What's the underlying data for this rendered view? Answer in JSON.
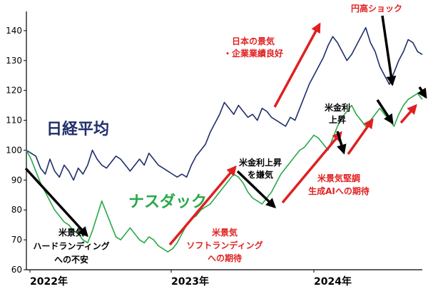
{
  "chart_data": {
    "type": "line",
    "title": "",
    "xlabel": "",
    "ylabel": "",
    "ylim": [
      60,
      145
    ],
    "yticks": [
      60,
      70,
      80,
      90,
      100,
      110,
      120,
      130,
      140
    ],
    "xtick_labels": [
      "2022年",
      "2023年",
      "2024年"
    ],
    "grid": false,
    "colors": {
      "nikkei": "#1f2f6b",
      "nasdaq": "#2aa84a",
      "up_arrow": "#e02020",
      "down_arrow": "#000000",
      "red_text": "#e02020",
      "black_text": "#000000"
    },
    "series": [
      {
        "name": "日経平均",
        "values": [
          100,
          99,
          98,
          94,
          92,
          97,
          93,
          91,
          95,
          93,
          90,
          94,
          92,
          95,
          100,
          97,
          95,
          94,
          96,
          98,
          97,
          95,
          93,
          95,
          97,
          95,
          99,
          97,
          95,
          94,
          93,
          92,
          91,
          92,
          91,
          95,
          98,
          100,
          102,
          106,
          109,
          112,
          116,
          114,
          112,
          115,
          113,
          111,
          112,
          110,
          114,
          113,
          111,
          110,
          109,
          108,
          111,
          110,
          114,
          118,
          122,
          125,
          128,
          131,
          135,
          138,
          136,
          133,
          130,
          132,
          135,
          138,
          141,
          136,
          133,
          128,
          125,
          122,
          126,
          130,
          133,
          137,
          136,
          133,
          132
        ]
      },
      {
        "name": "ナスダック",
        "values": [
          100,
          97,
          93,
          89,
          86,
          83,
          80,
          78,
          76,
          75,
          73,
          72,
          70,
          69,
          73,
          78,
          83,
          79,
          75,
          71,
          70,
          72,
          74,
          72,
          70,
          69,
          71,
          70,
          68,
          67,
          66,
          67,
          69,
          72,
          75,
          77,
          78,
          80,
          81,
          82,
          84,
          86,
          88,
          90,
          92,
          91,
          89,
          86,
          84,
          83,
          82,
          84,
          86,
          89,
          92,
          94,
          96,
          98,
          100,
          101,
          103,
          105,
          104,
          102,
          100,
          104,
          108,
          111,
          113,
          115,
          112,
          110,
          108,
          110,
          112,
          114,
          112,
          110,
          108,
          112,
          115,
          117,
          118,
          119,
          117
        ]
      }
    ],
    "series_labels": [
      "日経平均",
      "ナスダック"
    ],
    "annotations": [
      {
        "lines": [
          "円高ショック"
        ],
        "color": "red"
      },
      {
        "lines": [
          "日本の景気",
          "・企業業績良好"
        ],
        "color": "red"
      },
      {
        "lines": [
          "米金利",
          "上昇"
        ],
        "color": "black"
      },
      {
        "lines": [
          "米金利上昇",
          "を嫌気"
        ],
        "color": "black"
      },
      {
        "lines": [
          "米景気堅調",
          "生成AIへの期待"
        ],
        "color": "red"
      },
      {
        "lines": [
          "米景気",
          "ソフトランディング",
          "への期待"
        ],
        "color": "red"
      },
      {
        "lines": [
          "米景気",
          "ハードランディング",
          "への不安"
        ],
        "color": "black"
      }
    ]
  }
}
